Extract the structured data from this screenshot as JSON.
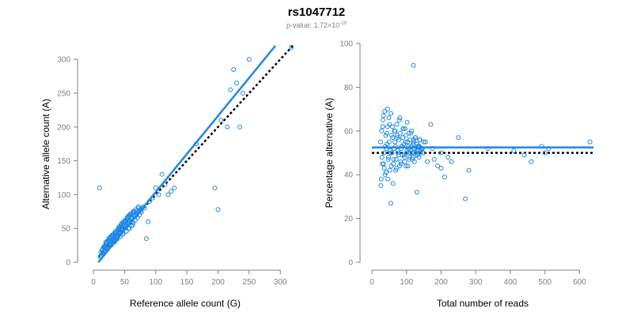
{
  "header": {
    "title": "rs1047712",
    "pvalue_prefix": "p-value: 1.72×10",
    "pvalue_exponent": "-19"
  },
  "colors": {
    "points": "#1e88e5",
    "fit_line": "#1e88e5",
    "reference_line": "#000000",
    "axis": "#808080"
  },
  "chart_data": [
    {
      "type": "scatter",
      "xlabel": "Reference allele count (G)",
      "ylabel": "Alternative allele count (A)",
      "xlim": [
        0,
        320
      ],
      "ylim": [
        0,
        320
      ],
      "xticks": [
        0,
        50,
        100,
        150,
        200,
        250,
        300
      ],
      "yticks": [
        0,
        50,
        100,
        150,
        200,
        250,
        300
      ],
      "fit_line": {
        "x": [
          8,
          292
        ],
        "y": [
          0,
          320
        ]
      },
      "reference_line": {
        "x": [
          8,
          320
        ],
        "y": [
          8,
          320
        ]
      },
      "points": {
        "x": [
          12,
          15,
          18,
          20,
          22,
          25,
          27,
          30,
          32,
          35,
          38,
          40,
          42,
          45,
          48,
          50,
          52,
          55,
          58,
          60,
          62,
          65,
          68,
          70,
          72,
          75,
          78,
          80,
          14,
          17,
          19,
          21,
          24,
          26,
          28,
          31,
          33,
          36,
          39,
          41,
          44,
          46,
          49,
          51,
          54,
          57,
          59,
          63,
          66,
          69,
          73,
          16,
          23,
          29,
          34,
          37,
          43,
          47,
          53,
          56,
          61,
          64,
          67,
          71,
          74,
          77,
          20,
          25,
          30,
          35,
          40,
          45,
          50,
          55,
          60,
          65,
          18,
          22,
          28,
          33,
          38,
          43,
          48,
          53,
          58,
          63,
          11,
          13,
          15,
          17,
          19,
          21,
          23,
          25,
          27,
          29,
          31,
          33,
          35,
          37,
          39,
          41,
          43,
          45,
          47,
          49,
          51,
          53,
          55,
          57,
          59,
          62,
          66,
          70,
          76,
          82,
          12,
          14,
          16,
          18,
          20,
          22,
          24,
          26,
          28,
          30,
          32,
          34,
          36,
          38,
          40,
          42,
          44,
          46,
          48,
          50,
          52,
          54,
          56,
          58,
          60,
          64,
          68,
          72,
          10,
          85,
          88,
          90,
          95,
          100,
          105,
          110,
          115,
          120,
          125,
          130,
          165,
          195,
          200,
          205,
          215,
          220,
          225,
          230,
          235,
          240,
          250,
          318
        ],
        "y": [
          10,
          14,
          20,
          22,
          25,
          30,
          28,
          35,
          38,
          42,
          40,
          45,
          48,
          50,
          52,
          55,
          58,
          60,
          62,
          65,
          60,
          70,
          68,
          72,
          75,
          78,
          80,
          82,
          18,
          22,
          24,
          28,
          32,
          35,
          33,
          40,
          42,
          45,
          48,
          52,
          55,
          58,
          60,
          62,
          66,
          68,
          70,
          72,
          74,
          76,
          80,
          12,
          20,
          26,
          30,
          35,
          38,
          42,
          46,
          50,
          54,
          58,
          62,
          66,
          70,
          74,
          30,
          35,
          40,
          45,
          50,
          55,
          60,
          65,
          70,
          75,
          16,
          20,
          25,
          30,
          34,
          38,
          42,
          46,
          50,
          55,
          8,
          10,
          14,
          16,
          18,
          20,
          22,
          25,
          28,
          30,
          32,
          34,
          36,
          38,
          40,
          44,
          46,
          48,
          50,
          52,
          54,
          56,
          58,
          60,
          62,
          64,
          68,
          72,
          76,
          80,
          15,
          18,
          22,
          24,
          27,
          30,
          33,
          36,
          38,
          40,
          35,
          38,
          42,
          45,
          48,
          50,
          52,
          56,
          58,
          60,
          62,
          65,
          68,
          70,
          72,
          75,
          78,
          82,
          110,
          35,
          60,
          90,
          95,
          110,
          100,
          130,
          115,
          100,
          105,
          110,
          175,
          110,
          78,
          210,
          200,
          255,
          285,
          265,
          200,
          250,
          300,
          318
        ]
      }
    },
    {
      "type": "scatter",
      "xlabel": "Total number of reads",
      "ylabel": "Percentage alternative (A)",
      "xlim": [
        0,
        640
      ],
      "ylim": [
        0,
        100
      ],
      "xticks": [
        0,
        100,
        200,
        300,
        400,
        500,
        600
      ],
      "yticks": [
        0,
        20,
        40,
        60,
        80,
        100
      ],
      "fit_line": {
        "x": [
          0,
          640
        ],
        "y": [
          52.5,
          52.5
        ]
      },
      "reference_line": {
        "x": [
          0,
          640
        ],
        "y": [
          50,
          50
        ]
      },
      "points": {
        "x": [
          25,
          28,
          30,
          32,
          35,
          38,
          40,
          42,
          45,
          48,
          50,
          52,
          55,
          58,
          60,
          62,
          65,
          68,
          70,
          72,
          75,
          78,
          80,
          82,
          85,
          88,
          90,
          92,
          95,
          98,
          100,
          102,
          105,
          108,
          110,
          112,
          115,
          118,
          120,
          122,
          125,
          128,
          130,
          132,
          135,
          138,
          140,
          145,
          150,
          26,
          29,
          33,
          36,
          39,
          43,
          46,
          49,
          53,
          56,
          59,
          63,
          66,
          69,
          73,
          76,
          79,
          83,
          86,
          89,
          93,
          96,
          99,
          103,
          106,
          109,
          113,
          116,
          119,
          123,
          126,
          129,
          133,
          136,
          139,
          143,
          148,
          27,
          31,
          34,
          37,
          41,
          44,
          47,
          51,
          54,
          57,
          61,
          64,
          67,
          71,
          74,
          77,
          81,
          84,
          87,
          91,
          94,
          97,
          101,
          104,
          107,
          111,
          114,
          117,
          121,
          124,
          127,
          131,
          134,
          137,
          141,
          146,
          155,
          160,
          170,
          175,
          180,
          190,
          200,
          210,
          220,
          230,
          250,
          270,
          280,
          335,
          410,
          440,
          460,
          490,
          500,
          510,
          630,
          120,
          55,
          45,
          130,
          200
        ],
        "y": [
          55,
          60,
          45,
          65,
          50,
          40,
          58,
          52,
          62,
          48,
          55,
          42,
          68,
          50,
          57,
          45,
          60,
          53,
          47,
          63,
          51,
          56,
          44,
          59,
          52,
          49,
          61,
          54,
          46,
          58,
          50,
          64,
          53,
          47,
          56,
          51,
          60,
          48,
          55,
          52,
          57,
          50,
          54,
          49,
          53,
          56,
          51,
          52,
          55,
          35,
          48,
          67,
          43,
          53,
          59,
          38,
          66,
          51,
          44,
          62,
          47,
          55,
          42,
          58,
          50,
          65,
          46,
          53,
          57,
          49,
          61,
          44,
          55,
          52,
          48,
          59,
          50,
          54,
          46,
          57,
          51,
          53,
          48,
          56,
          52,
          50,
          38,
          62,
          45,
          69,
          41,
          54,
          47,
          63,
          50,
          58,
          36,
          52,
          60,
          43,
          57,
          49,
          66,
          45,
          53,
          61,
          48,
          55,
          51,
          44,
          59,
          50,
          53,
          47,
          56,
          52,
          49,
          54,
          51,
          53,
          50,
          52,
          55,
          46,
          63,
          52,
          47,
          44,
          50,
          39,
          48,
          46,
          57,
          29,
          42,
          52,
          51,
          49,
          46,
          53,
          50,
          52,
          55,
          90,
          27,
          70,
          32,
          43
        ]
      }
    }
  ]
}
